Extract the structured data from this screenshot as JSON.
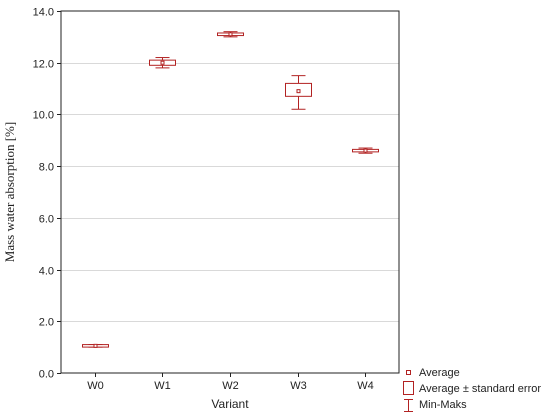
{
  "colors": {
    "mark": "#b22222",
    "grid": "#d9d9d9",
    "axis": "#222222"
  },
  "chart_data": {
    "type": "box",
    "xlabel": "Variant",
    "ylabel": "Mass water absorption [%]",
    "ylim": [
      0,
      14
    ],
    "yticks": [
      "0.0",
      "2.0",
      "4.0",
      "6.0",
      "8.0",
      "10.0",
      "12.0",
      "14.0"
    ],
    "grid": true,
    "legend_position": "bottom-right",
    "categories": [
      "W0",
      "W1",
      "W2",
      "W3",
      "W4"
    ],
    "series": [
      {
        "category": "W0",
        "average": 1.05,
        "se_low": 1.02,
        "se_high": 1.08,
        "min": 1.0,
        "max": 1.1
      },
      {
        "category": "W1",
        "average": 12.0,
        "se_low": 11.9,
        "se_high": 12.1,
        "min": 11.8,
        "max": 12.2
      },
      {
        "category": "W2",
        "average": 13.1,
        "se_low": 13.05,
        "se_high": 13.15,
        "min": 13.0,
        "max": 13.2
      },
      {
        "category": "W3",
        "average": 10.9,
        "se_low": 10.7,
        "se_high": 11.2,
        "min": 10.2,
        "max": 11.5
      },
      {
        "category": "W4",
        "average": 8.6,
        "se_low": 8.56,
        "se_high": 8.64,
        "min": 8.5,
        "max": 8.7
      }
    ],
    "legend": [
      {
        "key": "average",
        "label": "Average"
      },
      {
        "key": "se",
        "label": "Average ± standard error"
      },
      {
        "key": "range",
        "label": "Min-Maks"
      }
    ]
  }
}
